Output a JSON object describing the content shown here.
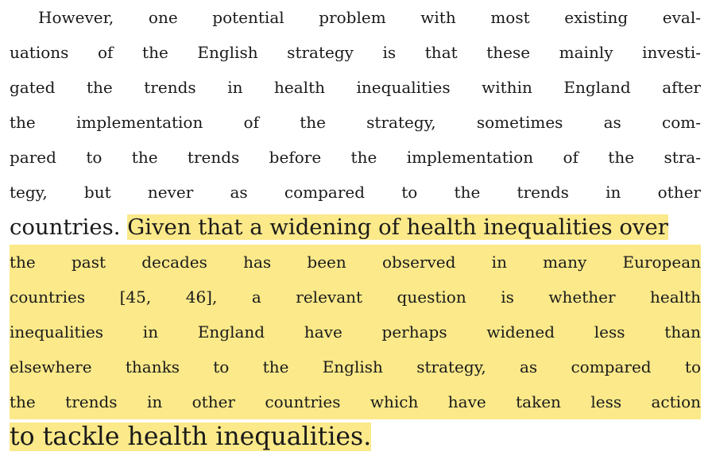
{
  "paragraph": {
    "lines": [
      "However, one potential problem with most existing eval-",
      "uations of the English strategy is that these mainly investi-",
      "gated the trends in health inequalities within England after",
      "the implementation of the strategy, sometimes as com-",
      "pared to the trends before the implementation of the stra-",
      "tegy, but never as compared to the trends in other",
      "countries. "
    ],
    "line7_highlight": "Given that a widening of health inequalities over",
    "highlighted_lines": [
      "the past decades has been observed in many European",
      "countries [45, 46], a relevant question is whether health",
      "inequalities in England have perhaps widened less than",
      "elsewhere thanks to the English strategy, as compared to",
      "the trends in other countries which have taken less action",
      "to tackle health inequalities."
    ],
    "highlight_color": "#fbe98a"
  }
}
